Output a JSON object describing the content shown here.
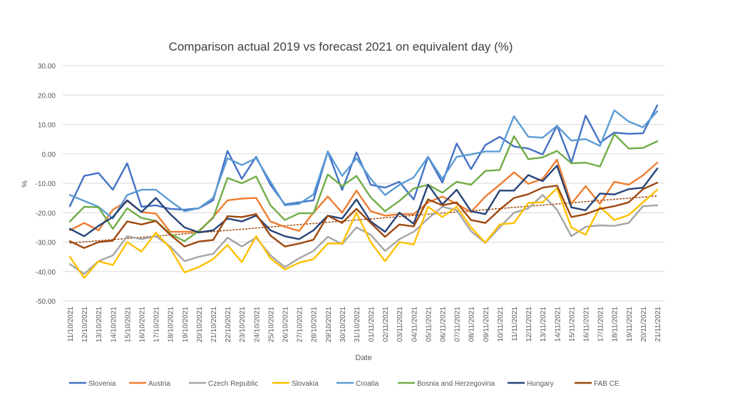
{
  "chart_data": {
    "type": "line",
    "title": "Comparison actual 2019 vs forecast 2021 on equivalent day (%)",
    "xlabel": "Date",
    "ylabel": "%",
    "ylim": [
      -50,
      30
    ],
    "yticks": [
      "-50.00",
      "-40.00",
      "-30.00",
      "-20.00",
      "-10.00",
      "0.00",
      "10.00",
      "20.00",
      "30.00"
    ],
    "grid": "horizontal",
    "legend_position": "bottom",
    "categories": [
      "11/10/2021",
      "12/10/2021",
      "13/10/2021",
      "14/10/2021",
      "15/10/2021",
      "16/10/2021",
      "17/10/2021",
      "18/10/2021",
      "19/10/2021",
      "20/10/2021",
      "21/10/2021",
      "22/10/2021",
      "23/10/2021",
      "24/10/2021",
      "25/10/2021",
      "26/10/2021",
      "27/10/2021",
      "28/10/2021",
      "29/10/2021",
      "30/10/2021",
      "31/10/2021",
      "01/11/2021",
      "02/11/2021",
      "03/11/2021",
      "04/11/2021",
      "05/11/2021",
      "06/11/2021",
      "07/11/2021",
      "08/11/2021",
      "09/11/2021",
      "10/11/2021",
      "11/11/2021",
      "12/11/2021",
      "13/11/2021",
      "14/11/2021",
      "15/11/2021",
      "16/11/2021",
      "17/11/2021",
      "18/11/2021",
      "19/11/2021",
      "20/11/2021",
      "21/11/2021"
    ],
    "series": [
      {
        "name": "Slovenia",
        "color": "#4472C4",
        "values": [
          -17.8,
          -7.5,
          -6.5,
          -12.2,
          -3.2,
          -18,
          -17.5,
          -18.7,
          -19,
          -18.5,
          -15.8,
          1,
          -8.5,
          -1,
          -10.5,
          -17.2,
          -16.5,
          -15.8,
          0.8,
          -12.3,
          0.5,
          -10.5,
          -11.5,
          -9.5,
          -15.5,
          -1,
          -9.8,
          3.5,
          -5.2,
          3,
          5.8,
          2.5,
          1.8,
          -0.2,
          9.6,
          -3,
          13,
          3.8,
          7.2,
          6.8,
          7,
          16.5
        ]
      },
      {
        "name": "Austria",
        "color": "#ED7D31",
        "values": [
          -26,
          -23.5,
          -26,
          -19,
          -16,
          -19.8,
          -20.3,
          -26.5,
          -26.5,
          -26.5,
          -21.5,
          -15.8,
          -15.2,
          -15,
          -23,
          -24.8,
          -26.2,
          -20,
          -14.5,
          -20,
          -12.5,
          -19.5,
          -21,
          -20.5,
          -20.5,
          -16.5,
          -14.5,
          -17,
          -19.8,
          -14.5,
          -10.5,
          -6.3,
          -10.2,
          -8.5,
          -2,
          -17,
          -11,
          -17,
          -9.5,
          -10.5,
          -7.3,
          -3
        ]
      },
      {
        "name": "Czech Republic",
        "color": "#A5A5A5",
        "values": [
          -37.5,
          -40.8,
          -36.5,
          -34.5,
          -28,
          -29,
          -28,
          -31.5,
          -36.5,
          -35,
          -34,
          -28.5,
          -31.5,
          -28.5,
          -34.5,
          -38.5,
          -35.5,
          -33,
          -28.2,
          -30.7,
          -25,
          -27.5,
          -33,
          -29,
          -26.5,
          -22,
          -18,
          -19.2,
          -26.3,
          -30.3,
          -25,
          -20,
          -18.5,
          -14,
          -19,
          -28,
          -24.8,
          -24.3,
          -24.5,
          -23.5,
          -17.8,
          -17.5
        ]
      },
      {
        "name": "Slovakia",
        "color": "#FFC000",
        "values": [
          -35,
          -42.2,
          -36.5,
          -37.8,
          -30,
          -33.2,
          -26.8,
          -32,
          -40.3,
          -38.5,
          -35.8,
          -31,
          -36.8,
          -28,
          -35.5,
          -39.3,
          -37,
          -35.8,
          -30.5,
          -30.5,
          -20,
          -30,
          -36.5,
          -30,
          -30.8,
          -18,
          -21.5,
          -18,
          -25,
          -30.2,
          -24,
          -23.5,
          -16.7,
          -16.5,
          -11.7,
          -25,
          -27.5,
          -18,
          -22.5,
          -20.8,
          -16.5,
          -12.2
        ]
      },
      {
        "name": "Croatia",
        "color": "#5B9BD5",
        "values": [
          -14,
          -16,
          -18,
          -22,
          -14,
          -12.2,
          -12.2,
          -16,
          -19.5,
          -18.5,
          -15,
          -1.5,
          -3.8,
          -1.5,
          -9.5,
          -17.5,
          -17,
          -13.8,
          0.8,
          -7.5,
          -1.5,
          -8.5,
          -14,
          -10.5,
          -8,
          -1,
          -8.5,
          -1,
          -0.2,
          0.8,
          0.8,
          12.8,
          5.8,
          5.5,
          9.5,
          4.5,
          5,
          2.7,
          14.8,
          11,
          9,
          14.5
        ]
      },
      {
        "name": "Bosnia and Herzegovina",
        "color": "#70AD47",
        "values": [
          -23,
          -18,
          -18.2,
          -25.5,
          -18.5,
          -21.8,
          -22.8,
          -27.2,
          -29.7,
          -26.2,
          -21.8,
          -8.2,
          -10,
          -7.7,
          -17.5,
          -22.5,
          -20.2,
          -20.2,
          -7,
          -11,
          -7.5,
          -14.8,
          -19.5,
          -16,
          -11.8,
          -10.5,
          -13.2,
          -9.5,
          -10.5,
          -5.8,
          -5.5,
          6,
          -1.8,
          -1.2,
          1,
          -3.2,
          -3,
          -4.3,
          6.7,
          1.8,
          2,
          4.3
        ]
      },
      {
        "name": "Hungary",
        "color": "#264478",
        "values": [
          -25.5,
          -28,
          -24.5,
          -21.5,
          -15.8,
          -19.8,
          -15,
          -20.5,
          -25,
          -26.7,
          -26,
          -22,
          -23,
          -21,
          -26,
          -28,
          -29,
          -26,
          -21,
          -22,
          -15.5,
          -23,
          -26.5,
          -20,
          -23.8,
          -10.5,
          -17.2,
          -12.2,
          -19.5,
          -20.5,
          -12.5,
          -12.5,
          -7.2,
          -9.3,
          -4,
          -18.2,
          -19.2,
          -13.5,
          -13.8,
          -12,
          -11.5,
          -5
        ]
      },
      {
        "name": "FAB CE",
        "color": "#9E480E",
        "values": [
          -29.7,
          -32,
          -30,
          -29.5,
          -23,
          -24,
          -22.8,
          -27.5,
          -31.5,
          -29.8,
          -29.3,
          -21.2,
          -21.5,
          -20.5,
          -27.8,
          -31.5,
          -30.5,
          -29.2,
          -21,
          -23.5,
          -18.7,
          -23.5,
          -28.2,
          -24,
          -24.7,
          -15.5,
          -17.5,
          -16.5,
          -22.5,
          -23.5,
          -19,
          -15,
          -13.7,
          -11.5,
          -10.8,
          -21.5,
          -20.5,
          -18.7,
          -17.8,
          -16.5,
          -12,
          -9.8
        ]
      }
    ],
    "trendline": {
      "series": "FAB CE",
      "type": "linear",
      "color": "#9E480E",
      "style": "dotted"
    }
  }
}
